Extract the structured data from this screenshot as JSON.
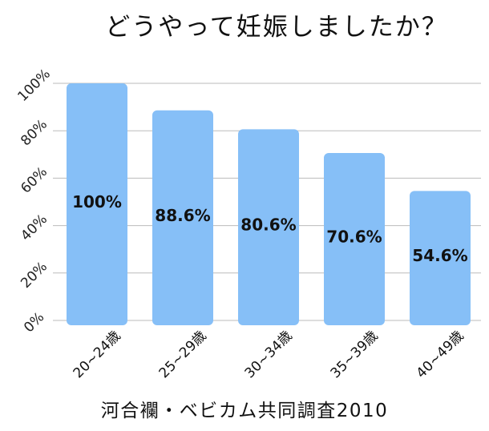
{
  "title": "どうやって妊娠しましたか？",
  "source": "河合襴・ベビカム共同調査2010",
  "chart_data": {
    "type": "bar",
    "title": "どうやって妊娠しましたか？",
    "categories": [
      "20~24歳",
      "25~29歳",
      "30~34歳",
      "35~39歳",
      "40~49歳"
    ],
    "values": [
      100,
      88.6,
      80.6,
      70.6,
      54.6
    ],
    "data_labels": [
      "100%",
      "88.6%",
      "80.6%",
      "70.6%",
      "54.6%"
    ],
    "y_ticks": [
      "0%",
      "20%",
      "40%",
      "60%",
      "80%",
      "100%"
    ],
    "ylim": [
      0,
      100
    ],
    "grid": true,
    "bar_color": "#86BFF7",
    "grid_color": "#BBBBBB"
  }
}
